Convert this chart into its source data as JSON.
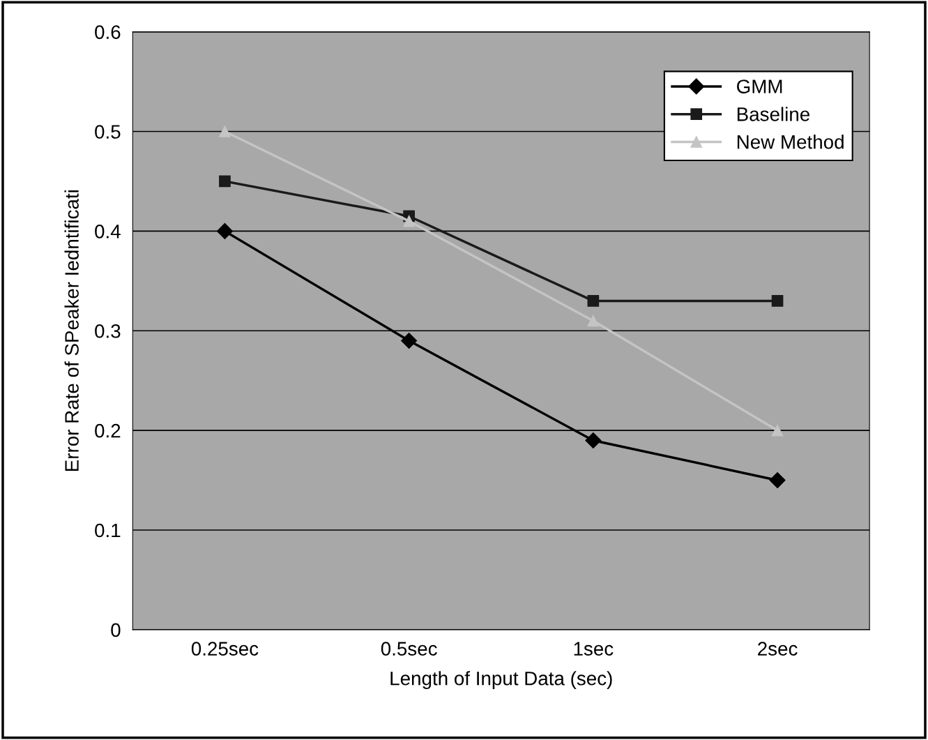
{
  "chart_data": {
    "type": "line",
    "xlabel": "Length of Input Data (sec)",
    "ylabel": "Error Rate of SPeaker Iedntificati",
    "categories": [
      "0.25sec",
      "0.5sec",
      "1sec",
      "2sec"
    ],
    "series": [
      {
        "name": "GMM",
        "color": "#000000",
        "marker": "diamond",
        "values": [
          0.4,
          0.29,
          0.19,
          0.15
        ]
      },
      {
        "name": "Baseline",
        "color": "#1a1a1a",
        "marker": "square",
        "values": [
          0.45,
          0.415,
          0.33,
          0.33
        ]
      },
      {
        "name": "New Method",
        "color": "#c4c4c4",
        "marker": "triangle",
        "values": [
          0.5,
          0.41,
          0.31,
          0.2
        ]
      }
    ],
    "ylim": [
      0,
      0.6
    ],
    "yticks": [
      0,
      0.1,
      0.2,
      0.3,
      0.4,
      0.5,
      0.6
    ],
    "grid": "y",
    "legend": "top right"
  }
}
